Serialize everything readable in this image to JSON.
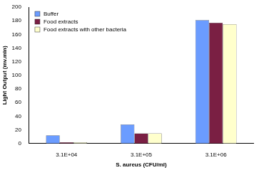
{
  "chart_data": {
    "type": "bar",
    "categories": [
      "3.1E+04",
      "3.1E+05",
      "3.1E+06"
    ],
    "series": [
      {
        "name": "Buffer",
        "color": "#6b9cff",
        "values": [
          12,
          28,
          181
        ]
      },
      {
        "name": "Food extracts",
        "color": "#7a1f43",
        "values": [
          2,
          15,
          177
        ]
      },
      {
        "name": "Food extracts with other bacteria",
        "color": "#ffffcc",
        "values": [
          2,
          15,
          175
        ]
      }
    ],
    "x_label": "S. aureus (CFU/ml)",
    "y_label": "Light Output (mv.min)",
    "ylim": [
      0,
      200
    ],
    "yticks": [
      0,
      20,
      40,
      60,
      80,
      100,
      120,
      140,
      160,
      180,
      200
    ],
    "grid": false,
    "legend": "upper left"
  }
}
